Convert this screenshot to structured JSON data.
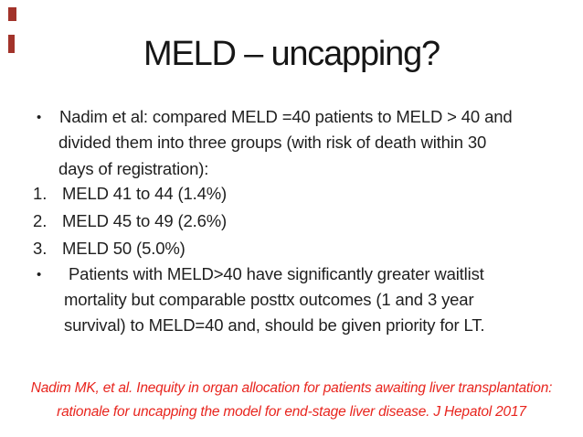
{
  "slide": {
    "title": "MELD – uncapping?",
    "decor": {
      "color": "#a2332a"
    },
    "body": {
      "bullet_marker": "•",
      "paragraph1": {
        "lines": [
          "Nadim et al: compared MELD =40 patients to MELD > 40 and",
          "divided them into three groups (with risk of death within 30",
          "days of registration):"
        ]
      },
      "numbered_items": [
        {
          "marker": "1.",
          "text": "MELD 41 to 44 (1.4%)"
        },
        {
          "marker": "2.",
          "text": "MELD 45 to 49 (2.6%)"
        },
        {
          "marker": "3.",
          "text": "MELD 50 (5.0%)"
        }
      ],
      "paragraph2": {
        "lines": [
          " Patients with MELD>40 have significantly greater waitlist",
          "mortality but comparable posttx outcomes (1 and 3 year",
          "survival) to MELD=40 and, should be given priority for LT."
        ]
      }
    },
    "citation": {
      "color": "#e8251e",
      "lines": [
        "Nadim MK, et al. Inequity in organ allocation for patients awaiting liver transplantation:",
        "rationale for uncapping the model for end-stage liver disease. J Hepatol 2017"
      ]
    }
  }
}
